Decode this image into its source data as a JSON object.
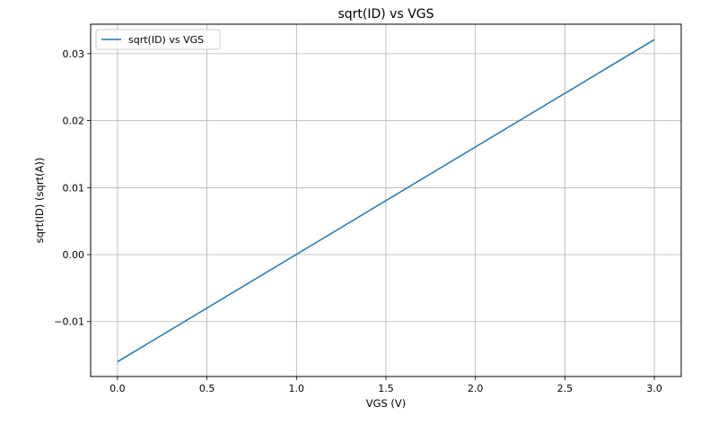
{
  "chart_data": {
    "type": "line",
    "title": "sqrt(ID) vs VGS",
    "xlabel": "VGS (V)",
    "ylabel": "sqrt(ID) (sqrt(A))",
    "xlim": [
      -0.15,
      3.15
    ],
    "ylim": [
      -0.0182,
      0.0344
    ],
    "xticks": [
      0.0,
      0.5,
      1.0,
      1.5,
      2.0,
      2.5,
      3.0
    ],
    "xtick_labels": [
      "0.0",
      "0.5",
      "1.0",
      "1.5",
      "2.0",
      "2.5",
      "3.0"
    ],
    "yticks": [
      -0.01,
      0.0,
      0.01,
      0.02,
      0.03
    ],
    "ytick_labels": [
      "−0.01",
      "0.00",
      "0.01",
      "0.02",
      "0.03"
    ],
    "grid": true,
    "legend_position": "upper-left",
    "series": [
      {
        "name": "sqrt(ID) vs VGS",
        "color": "#1f77b4",
        "x": [
          0.0,
          3.0
        ],
        "y": [
          -0.016,
          0.0321
        ]
      }
    ]
  }
}
